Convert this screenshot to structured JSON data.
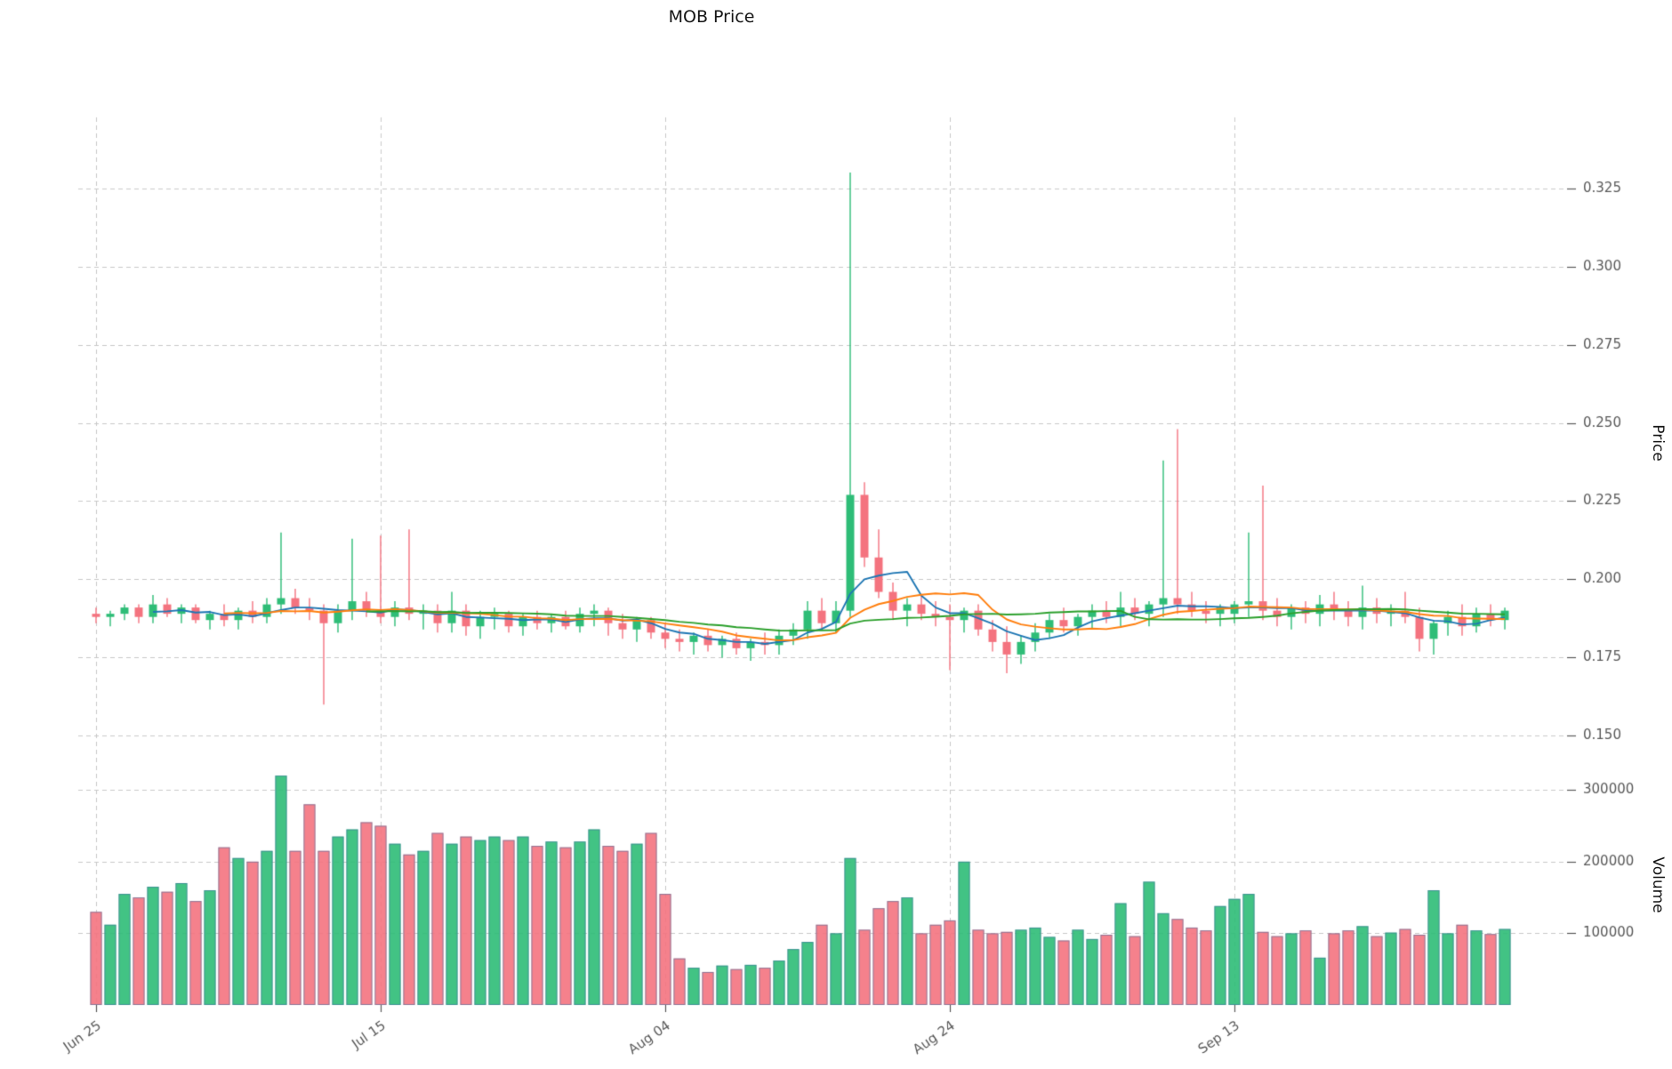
{
  "title": "MOB Price",
  "price_axis": {
    "label": "Price",
    "ticks": [
      0.15,
      0.175,
      0.2,
      0.225,
      0.25,
      0.275,
      0.3,
      0.325
    ],
    "ylim": [
      0.145,
      0.3425
    ],
    "tick_decimals": 3
  },
  "volume_axis": {
    "label": "Volume",
    "ticks": [
      100000,
      200000,
      300000
    ],
    "ylim": [
      0,
      335000
    ]
  },
  "x_axis": {
    "tick_labels": [
      "Jun 25",
      "Jul 15",
      "Aug 04",
      "Aug 24",
      "Sep 13"
    ],
    "tick_indices": [
      0,
      20,
      40,
      60,
      80
    ]
  },
  "colors": {
    "up": "#2ebd77",
    "down": "#f4737f",
    "volume_edge": "#3a6b9e",
    "grid": "#c9c9c9",
    "tick_text": "#595959",
    "background": "#ffffff"
  },
  "moving_averages": [
    {
      "name": "MA5",
      "window": 5,
      "color": "#1f77b4"
    },
    {
      "name": "MA10",
      "window": 10,
      "color": "#ff7f0e"
    },
    {
      "name": "MA20",
      "window": 20,
      "color": "#2ca02c"
    }
  ],
  "chart_data": {
    "type": "candlestick+volume",
    "title": "MOB Price",
    "ylabel": "Price",
    "ylabel2": "Volume",
    "grid": "dashed",
    "dates": [
      "Jun 25",
      "Jun 26",
      "Jun 27",
      "Jun 28",
      "Jun 29",
      "Jun 30",
      "Jul 01",
      "Jul 02",
      "Jul 03",
      "Jul 04",
      "Jul 05",
      "Jul 06",
      "Jul 07",
      "Jul 08",
      "Jul 09",
      "Jul 10",
      "Jul 11",
      "Jul 12",
      "Jul 13",
      "Jul 14",
      "Jul 15",
      "Jul 16",
      "Jul 17",
      "Jul 18",
      "Jul 19",
      "Jul 20",
      "Jul 21",
      "Jul 22",
      "Jul 23",
      "Jul 24",
      "Jul 25",
      "Jul 26",
      "Jul 27",
      "Jul 28",
      "Jul 29",
      "Jul 30",
      "Jul 31",
      "Aug 01",
      "Aug 02",
      "Aug 03",
      "Aug 04",
      "Aug 05",
      "Aug 06",
      "Aug 07",
      "Aug 08",
      "Aug 09",
      "Aug 10",
      "Aug 11",
      "Aug 12",
      "Aug 13",
      "Aug 14",
      "Aug 15",
      "Aug 16",
      "Aug 17",
      "Aug 18",
      "Aug 19",
      "Aug 20",
      "Aug 21",
      "Aug 22",
      "Aug 23",
      "Aug 24",
      "Aug 25",
      "Aug 26",
      "Aug 27",
      "Aug 28",
      "Aug 29",
      "Aug 30",
      "Aug 31",
      "Sep 01",
      "Sep 02",
      "Sep 03",
      "Sep 04",
      "Sep 05",
      "Sep 06",
      "Sep 07",
      "Sep 08",
      "Sep 09",
      "Sep 10",
      "Sep 11",
      "Sep 12",
      "Sep 13",
      "Sep 14",
      "Sep 15",
      "Sep 16",
      "Sep 17",
      "Sep 18",
      "Sep 19",
      "Sep 20",
      "Sep 21",
      "Sep 22",
      "Sep 23",
      "Sep 24",
      "Sep 25",
      "Sep 26",
      "Sep 27",
      "Sep 28",
      "Sep 29",
      "Sep 30",
      "Oct 01",
      "Oct 02"
    ],
    "ohlc": [
      [
        0.189,
        0.191,
        0.186,
        0.188
      ],
      [
        0.188,
        0.19,
        0.185,
        0.189
      ],
      [
        0.189,
        0.192,
        0.187,
        0.191
      ],
      [
        0.191,
        0.192,
        0.186,
        0.188
      ],
      [
        0.188,
        0.195,
        0.186,
        0.192
      ],
      [
        0.192,
        0.194,
        0.188,
        0.189
      ],
      [
        0.189,
        0.192,
        0.186,
        0.191
      ],
      [
        0.191,
        0.192,
        0.186,
        0.187
      ],
      [
        0.187,
        0.19,
        0.184,
        0.189
      ],
      [
        0.189,
        0.192,
        0.185,
        0.187
      ],
      [
        0.187,
        0.191,
        0.184,
        0.19
      ],
      [
        0.19,
        0.193,
        0.186,
        0.188
      ],
      [
        0.188,
        0.194,
        0.186,
        0.192
      ],
      [
        0.192,
        0.215,
        0.189,
        0.194
      ],
      [
        0.194,
        0.197,
        0.189,
        0.191
      ],
      [
        0.191,
        0.194,
        0.187,
        0.19
      ],
      [
        0.19,
        0.192,
        0.16,
        0.186
      ],
      [
        0.186,
        0.192,
        0.183,
        0.19
      ],
      [
        0.19,
        0.213,
        0.187,
        0.193
      ],
      [
        0.193,
        0.196,
        0.188,
        0.19
      ],
      [
        0.19,
        0.214,
        0.186,
        0.188
      ],
      [
        0.188,
        0.193,
        0.185,
        0.191
      ],
      [
        0.191,
        0.216,
        0.187,
        0.189
      ],
      [
        0.189,
        0.192,
        0.184,
        0.19
      ],
      [
        0.19,
        0.192,
        0.183,
        0.186
      ],
      [
        0.186,
        0.196,
        0.183,
        0.19
      ],
      [
        0.19,
        0.192,
        0.182,
        0.185
      ],
      [
        0.185,
        0.19,
        0.181,
        0.188
      ],
      [
        0.188,
        0.191,
        0.184,
        0.189
      ],
      [
        0.189,
        0.19,
        0.183,
        0.185
      ],
      [
        0.185,
        0.189,
        0.182,
        0.188
      ],
      [
        0.188,
        0.19,
        0.184,
        0.186
      ],
      [
        0.186,
        0.189,
        0.183,
        0.188
      ],
      [
        0.188,
        0.19,
        0.184,
        0.185
      ],
      [
        0.185,
        0.191,
        0.183,
        0.189
      ],
      [
        0.189,
        0.192,
        0.185,
        0.19
      ],
      [
        0.19,
        0.191,
        0.182,
        0.186
      ],
      [
        0.186,
        0.189,
        0.181,
        0.184
      ],
      [
        0.184,
        0.188,
        0.18,
        0.187
      ],
      [
        0.187,
        0.188,
        0.181,
        0.183
      ],
      [
        0.183,
        0.186,
        0.178,
        0.181
      ],
      [
        0.181,
        0.184,
        0.177,
        0.18
      ],
      [
        0.18,
        0.183,
        0.176,
        0.182
      ],
      [
        0.182,
        0.184,
        0.177,
        0.179
      ],
      [
        0.179,
        0.182,
        0.175,
        0.181
      ],
      [
        0.181,
        0.183,
        0.176,
        0.178
      ],
      [
        0.178,
        0.181,
        0.174,
        0.18
      ],
      [
        0.18,
        0.183,
        0.176,
        0.179
      ],
      [
        0.179,
        0.184,
        0.176,
        0.182
      ],
      [
        0.182,
        0.186,
        0.179,
        0.184
      ],
      [
        0.184,
        0.193,
        0.181,
        0.19
      ],
      [
        0.19,
        0.194,
        0.184,
        0.186
      ],
      [
        0.186,
        0.193,
        0.183,
        0.19
      ],
      [
        0.19,
        0.33,
        0.188,
        0.227
      ],
      [
        0.227,
        0.231,
        0.204,
        0.207
      ],
      [
        0.207,
        0.216,
        0.194,
        0.196
      ],
      [
        0.196,
        0.199,
        0.187,
        0.19
      ],
      [
        0.19,
        0.194,
        0.185,
        0.192
      ],
      [
        0.192,
        0.195,
        0.187,
        0.189
      ],
      [
        0.189,
        0.193,
        0.185,
        0.188
      ],
      [
        0.188,
        0.192,
        0.171,
        0.187
      ],
      [
        0.187,
        0.191,
        0.183,
        0.19
      ],
      [
        0.19,
        0.192,
        0.182,
        0.184
      ],
      [
        0.184,
        0.187,
        0.177,
        0.18
      ],
      [
        0.18,
        0.185,
        0.17,
        0.176
      ],
      [
        0.176,
        0.182,
        0.173,
        0.18
      ],
      [
        0.18,
        0.186,
        0.177,
        0.183
      ],
      [
        0.183,
        0.189,
        0.181,
        0.187
      ],
      [
        0.187,
        0.191,
        0.183,
        0.185
      ],
      [
        0.185,
        0.189,
        0.182,
        0.188
      ],
      [
        0.188,
        0.192,
        0.184,
        0.19
      ],
      [
        0.19,
        0.193,
        0.186,
        0.188
      ],
      [
        0.188,
        0.196,
        0.185,
        0.191
      ],
      [
        0.191,
        0.194,
        0.187,
        0.189
      ],
      [
        0.189,
        0.193,
        0.185,
        0.192
      ],
      [
        0.192,
        0.238,
        0.188,
        0.194
      ],
      [
        0.194,
        0.248,
        0.189,
        0.192
      ],
      [
        0.192,
        0.196,
        0.188,
        0.19
      ],
      [
        0.19,
        0.193,
        0.186,
        0.189
      ],
      [
        0.189,
        0.192,
        0.185,
        0.191
      ],
      [
        0.189,
        0.193,
        0.186,
        0.192
      ],
      [
        0.192,
        0.215,
        0.188,
        0.193
      ],
      [
        0.193,
        0.23,
        0.187,
        0.19
      ],
      [
        0.19,
        0.194,
        0.185,
        0.188
      ],
      [
        0.188,
        0.192,
        0.184,
        0.191
      ],
      [
        0.191,
        0.193,
        0.186,
        0.189
      ],
      [
        0.189,
        0.195,
        0.185,
        0.192
      ],
      [
        0.192,
        0.196,
        0.187,
        0.19
      ],
      [
        0.19,
        0.193,
        0.185,
        0.188
      ],
      [
        0.188,
        0.198,
        0.184,
        0.191
      ],
      [
        0.191,
        0.194,
        0.186,
        0.189
      ],
      [
        0.189,
        0.192,
        0.185,
        0.19
      ],
      [
        0.19,
        0.196,
        0.186,
        0.188
      ],
      [
        0.188,
        0.191,
        0.177,
        0.181
      ],
      [
        0.181,
        0.187,
        0.176,
        0.186
      ],
      [
        0.186,
        0.19,
        0.182,
        0.188
      ],
      [
        0.188,
        0.192,
        0.182,
        0.185
      ],
      [
        0.185,
        0.191,
        0.183,
        0.189
      ],
      [
        0.189,
        0.192,
        0.185,
        0.187
      ],
      [
        0.187,
        0.191,
        0.184,
        0.19
      ]
    ],
    "volume": [
      130000,
      112000,
      155000,
      150000,
      165000,
      158000,
      170000,
      145000,
      160000,
      220000,
      205000,
      200000,
      215000,
      320000,
      215000,
      280000,
      215000,
      235000,
      245000,
      255000,
      250000,
      225000,
      210000,
      215000,
      240000,
      225000,
      235000,
      230000,
      235000,
      230000,
      235000,
      222000,
      228000,
      220000,
      228000,
      245000,
      222000,
      215000,
      225000,
      240000,
      155000,
      65000,
      52000,
      46000,
      55000,
      50000,
      56000,
      52000,
      62000,
      78000,
      88000,
      112000,
      100000,
      205000,
      105000,
      135000,
      145000,
      150000,
      100000,
      112000,
      118000,
      200000,
      105000,
      100000,
      102000,
      105000,
      108000,
      95000,
      90000,
      105000,
      92000,
      98000,
      142000,
      96000,
      172000,
      128000,
      120000,
      108000,
      104000,
      138000,
      148000,
      155000,
      102000,
      96000,
      100000,
      104000,
      66000,
      100000,
      104000,
      110000,
      96000,
      101000,
      106000,
      98000,
      160000,
      100000,
      112000,
      104000,
      99000,
      106000
    ]
  }
}
